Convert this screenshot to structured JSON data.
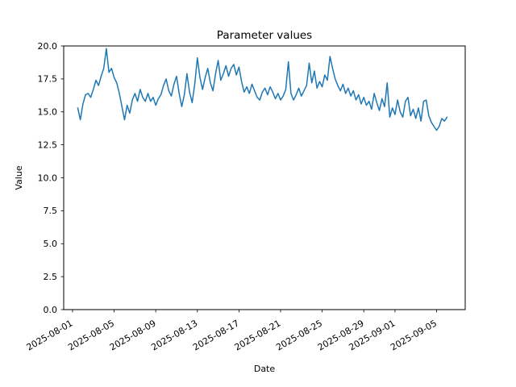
{
  "figure": {
    "background": "#ffffff",
    "title": "Parameter values",
    "xlabel": "Date",
    "ylabel": "Value"
  },
  "chart_data": {
    "type": "line",
    "title": "Parameter values",
    "xlabel": "Date",
    "ylabel": "Value",
    "grid": false,
    "legend": null,
    "line_color": "#1f77b4",
    "axis_color": "#000000",
    "ylim": [
      0.0,
      20.0
    ],
    "y_ticks": [
      0.0,
      2.5,
      5.0,
      7.5,
      10.0,
      12.5,
      15.0,
      17.5,
      20.0
    ],
    "x_epoch": "2025-08-01",
    "x_domain_days": [
      -0.85,
      37.75
    ],
    "x_tick_rotation_deg": 30,
    "x_ticks": [
      {
        "label": "2025-08-01",
        "day": 0
      },
      {
        "label": "2025-08-05",
        "day": 4
      },
      {
        "label": "2025-08-09",
        "day": 8
      },
      {
        "label": "2025-08-13",
        "day": 12
      },
      {
        "label": "2025-08-17",
        "day": 16
      },
      {
        "label": "2025-08-21",
        "day": 20
      },
      {
        "label": "2025-08-25",
        "day": 24
      },
      {
        "label": "2025-08-29",
        "day": 28
      },
      {
        "label": "2025-09-01",
        "day": 31
      },
      {
        "label": "2025-09-05",
        "day": 35
      }
    ],
    "series": [
      {
        "name": "Parameter",
        "color": "#1f77b4",
        "start_day": 0.5,
        "step_days": 0.25,
        "values": [
          15.3,
          14.4,
          15.6,
          16.3,
          16.4,
          16.1,
          16.7,
          17.4,
          17.0,
          17.7,
          18.3,
          19.8,
          18.0,
          18.3,
          17.6,
          17.2,
          16.4,
          15.4,
          14.4,
          15.5,
          14.9,
          15.9,
          16.4,
          15.8,
          16.7,
          16.1,
          15.8,
          16.4,
          15.8,
          16.1,
          15.5,
          16.0,
          16.3,
          17.0,
          17.5,
          16.6,
          16.2,
          17.1,
          17.7,
          16.4,
          15.4,
          16.3,
          17.9,
          16.5,
          15.7,
          17.1,
          19.1,
          17.6,
          16.7,
          17.6,
          18.3,
          17.2,
          16.6,
          17.9,
          18.9,
          17.4,
          17.9,
          18.5,
          17.7,
          18.3,
          18.6,
          17.8,
          18.4,
          17.3,
          16.5,
          16.9,
          16.4,
          17.1,
          16.6,
          16.1,
          15.9,
          16.5,
          16.8,
          16.3,
          16.9,
          16.5,
          16.0,
          16.4,
          15.9,
          16.2,
          16.7,
          18.8,
          16.4,
          15.9,
          16.3,
          16.8,
          16.2,
          16.6,
          17.0,
          18.7,
          17.2,
          18.1,
          16.8,
          17.3,
          16.9,
          17.8,
          17.4,
          19.2,
          18.3,
          17.5,
          17.0,
          16.6,
          17.1,
          16.4,
          16.8,
          16.2,
          16.6,
          15.9,
          16.3,
          15.6,
          16.1,
          15.5,
          15.8,
          15.2,
          16.4,
          15.7,
          15.1,
          16.0,
          15.4,
          17.2,
          14.6,
          15.3,
          14.8,
          15.9,
          15.0,
          14.6,
          15.8,
          16.1,
          14.7,
          15.2,
          14.5,
          15.3,
          14.3,
          15.8,
          15.9,
          14.7,
          14.2,
          13.9,
          13.6,
          13.9,
          14.5,
          14.3,
          14.6
        ]
      }
    ]
  }
}
